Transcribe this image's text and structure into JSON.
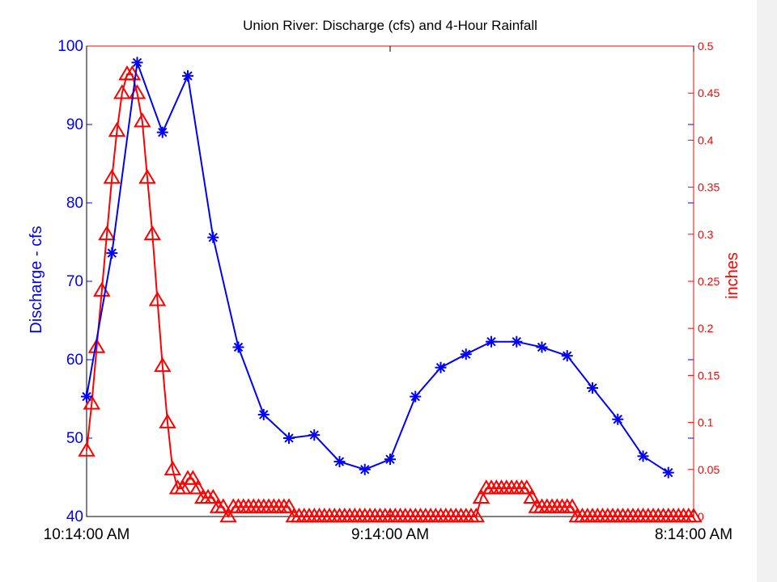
{
  "chart_data": {
    "type": "line",
    "title": "Union River: Discharge (cfs) and  4-Hour Rainfall",
    "xlabel": "",
    "x_tick_labels": [
      "10:14:00 AM",
      "9:14:00 AM",
      "8:14:00 AM"
    ],
    "grid": false,
    "legend": "none",
    "colors": {
      "primary": "#0000ff",
      "secondary": "#ff0000",
      "axes": "#000000",
      "gutter": "#f0f0f0"
    },
    "left_axis": {
      "label": "Discharge - cfs",
      "ylim": [
        40,
        100
      ],
      "ticks": [
        40,
        50,
        60,
        70,
        80,
        90,
        100
      ]
    },
    "right_axis": {
      "label": "inches",
      "ylim": [
        0,
        0.5
      ],
      "ticks": [
        0,
        0.05,
        0.1,
        0.15,
        0.2,
        0.25,
        0.3,
        0.35,
        0.4,
        0.45,
        0.5
      ],
      "tick_labels": [
        "0",
        "0.05",
        "0.1",
        "0.15",
        "0.2",
        "0.25",
        "0.3",
        "0.35",
        "0.4",
        "0.45",
        "0.5"
      ]
    },
    "x_domain": [
      0,
      24
    ],
    "series": [
      {
        "axis": "left",
        "marker": "asterisk",
        "color": "#0000ff",
        "x": [
          0,
          1,
          2,
          3,
          4,
          5,
          6,
          7,
          8,
          9,
          10,
          11,
          12,
          13,
          14,
          15,
          16,
          17,
          18,
          19,
          20,
          21,
          22,
          23,
          24
        ],
        "y": [
          55.3,
          73.6,
          97.9,
          89.0,
          96.2,
          75.6,
          61.6,
          53.0,
          50.0,
          50.4,
          47.0,
          46.0,
          47.3,
          55.3,
          59.0,
          60.7,
          62.3,
          62.3,
          61.6,
          60.5,
          56.4,
          52.4,
          47.7,
          45.6,
          null
        ]
      },
      {
        "axis": "right",
        "marker": "triangle",
        "color": "#ff0000",
        "x": [
          0.0,
          0.2,
          0.4,
          0.6,
          0.8,
          1.0,
          1.2,
          1.4,
          1.6,
          1.8,
          2.0,
          2.2,
          2.4,
          2.6,
          2.8,
          3.0,
          3.2,
          3.4,
          3.6,
          3.8,
          4.0,
          4.2,
          4.4,
          4.6,
          4.8,
          5.0,
          5.2,
          5.4,
          5.6,
          5.8,
          6.0,
          6.2,
          6.4,
          6.6,
          6.8,
          7.0,
          7.2,
          7.4,
          7.6,
          7.8,
          8.0,
          8.2,
          8.4,
          8.6,
          8.8,
          9.0,
          9.2,
          9.4,
          9.6,
          9.8,
          10.0,
          10.2,
          10.4,
          10.6,
          10.8,
          11.0,
          11.2,
          11.4,
          11.6,
          11.8,
          12.0,
          12.2,
          12.4,
          12.6,
          12.8,
          13.0,
          13.2,
          13.4,
          13.6,
          13.8,
          14.0,
          14.2,
          14.4,
          14.6,
          14.8,
          15.0,
          15.2,
          15.4,
          15.6,
          15.8,
          16.0,
          16.2,
          16.4,
          16.6,
          16.8,
          17.0,
          17.2,
          17.4,
          17.6,
          17.8,
          18.0,
          18.2,
          18.4,
          18.6,
          18.8,
          19.0,
          19.2,
          19.4,
          19.6,
          19.8,
          20.0,
          20.2,
          20.4,
          20.6,
          20.8,
          21.0,
          21.2,
          21.4,
          21.6,
          21.8,
          22.0,
          22.2,
          22.4,
          22.6,
          22.8,
          23.0,
          23.2,
          23.4,
          23.6,
          23.8,
          24.0
        ],
        "y": [
          0.07,
          0.12,
          0.18,
          0.24,
          0.3,
          0.36,
          0.41,
          0.45,
          0.47,
          0.47,
          0.45,
          0.42,
          0.36,
          0.3,
          0.23,
          0.16,
          0.1,
          0.05,
          0.03,
          0.03,
          0.04,
          0.04,
          0.03,
          0.02,
          0.02,
          0.02,
          0.01,
          0.01,
          0.0,
          0.01,
          0.01,
          0.01,
          0.01,
          0.01,
          0.01,
          0.01,
          0.01,
          0.01,
          0.01,
          0.01,
          0.01,
          0.0,
          0.0,
          0.0,
          0.0,
          0.0,
          0.0,
          0.0,
          0.0,
          0.0,
          0.0,
          0.0,
          0.0,
          0.0,
          0.0,
          0.0,
          0.0,
          0.0,
          0.0,
          0.0,
          0.0,
          0.0,
          0.0,
          0.0,
          0.0,
          0.0,
          0.0,
          0.0,
          0.0,
          0.0,
          0.0,
          0.0,
          0.0,
          0.0,
          0.0,
          0.0,
          0.0,
          0.0,
          0.02,
          0.03,
          0.03,
          0.03,
          0.03,
          0.03,
          0.03,
          0.03,
          0.03,
          0.03,
          0.02,
          0.01,
          0.01,
          0.01,
          0.01,
          0.01,
          0.01,
          0.01,
          0.01,
          0.0,
          0.0,
          0.0,
          0.0,
          0.0,
          0.0,
          0.0,
          0.0,
          0.0,
          0.0,
          0.0,
          0.0,
          0.0,
          0.0,
          0.0,
          0.0,
          0.0,
          0.0,
          0.0,
          0.0,
          0.0,
          0.0,
          0.0,
          0.0
        ]
      }
    ]
  }
}
